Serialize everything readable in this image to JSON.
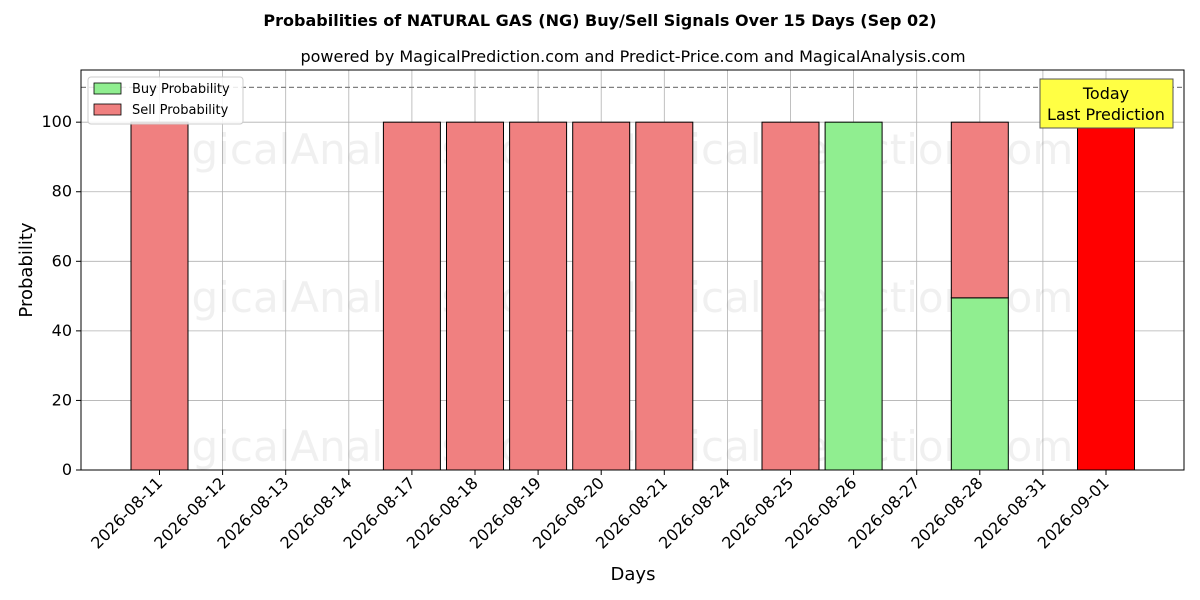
{
  "chart_data": {
    "type": "bar",
    "title": "Probabilities of NATURAL GAS (NG) Buy/Sell Signals Over 15 Days (Sep 02)",
    "subtitle": "powered by MagicalPrediction.com and Predict-Price.com and MagicalAnalysis.com",
    "xlabel": "Days",
    "ylabel": "Probability",
    "ylim": [
      0,
      115
    ],
    "yticks": [
      0,
      20,
      40,
      60,
      80,
      100
    ],
    "grid": true,
    "legend_position": "top-left",
    "reference_line": 110,
    "categories": [
      "2026-08-11",
      "2026-08-12",
      "2026-08-13",
      "2026-08-14",
      "2026-08-17",
      "2026-08-18",
      "2026-08-19",
      "2026-08-20",
      "2026-08-21",
      "2026-08-24",
      "2026-08-25",
      "2026-08-26",
      "2026-08-27",
      "2026-08-28",
      "2026-08-31",
      "2026-09-01"
    ],
    "series": [
      {
        "name": "Buy Probability",
        "color": "#90ee90",
        "values": [
          0,
          null,
          null,
          null,
          0,
          0,
          0,
          0,
          0,
          null,
          0,
          100,
          null,
          49.5,
          null,
          0
        ]
      },
      {
        "name": "Sell Probability",
        "color": "#f08080",
        "values": [
          100,
          null,
          null,
          null,
          100,
          100,
          100,
          100,
          100,
          null,
          100,
          0,
          null,
          50.5,
          null,
          100
        ]
      }
    ],
    "highlight": {
      "category": "2026-09-01",
      "color": "#ff0000"
    },
    "annotation": {
      "line1": "Today",
      "line2": "Last Prediction",
      "background": "#ffff44"
    },
    "watermarks": [
      "MagicalAnalysis.com",
      "MagicalPrediction.com"
    ]
  }
}
